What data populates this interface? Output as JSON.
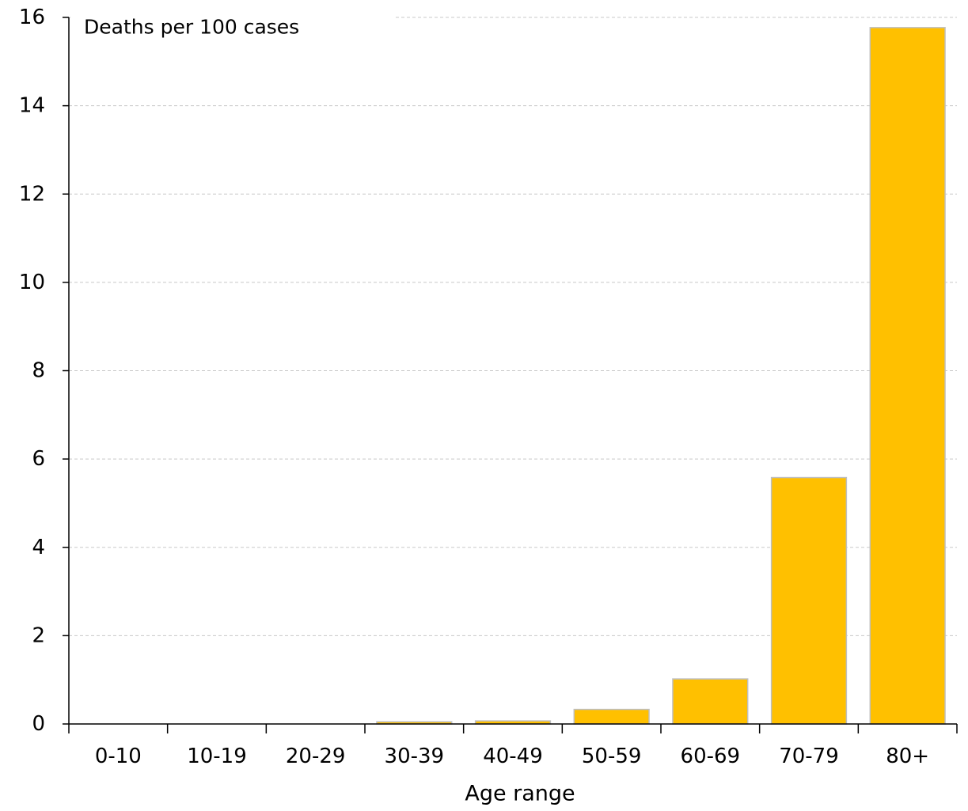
{
  "chart_data": {
    "type": "bar",
    "title": "",
    "ylabel": "Deaths per 100 cases",
    "xlabel": "Age range",
    "categories": [
      "0-10",
      "10-19",
      "20-29",
      "30-39",
      "40-49",
      "50-59",
      "60-69",
      "70-79",
      "80+"
    ],
    "values": [
      0.0,
      0.0,
      0.0,
      0.05,
      0.07,
      0.33,
      1.02,
      5.58,
      15.77
    ],
    "ylim": [
      0,
      16
    ],
    "yticks": [
      0,
      2,
      4,
      6,
      8,
      10,
      12,
      14,
      16
    ],
    "grid": true,
    "legend": "none",
    "colors": {
      "bar_fill": "#FFC000",
      "bar_stroke": "#BFBFBF",
      "grid": "#C8C8C8",
      "axis": "#000000"
    }
  }
}
